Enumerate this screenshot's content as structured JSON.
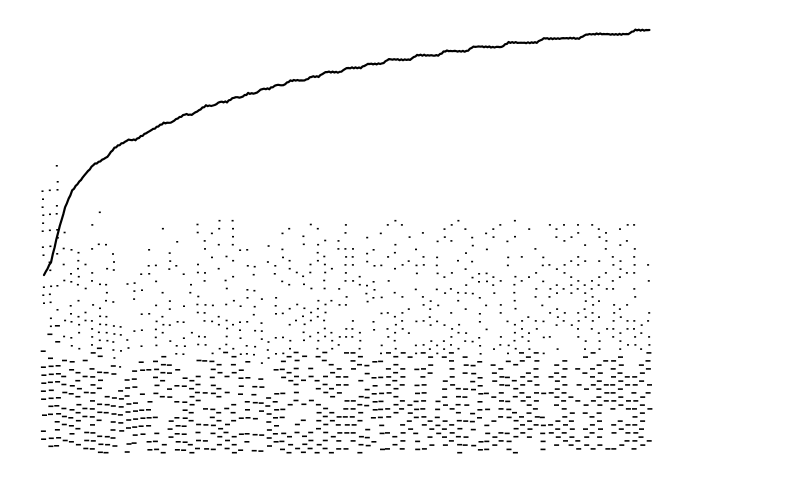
{
  "chart_data": {
    "type": "line",
    "title": "",
    "xlabel": "",
    "ylabel": "",
    "grid": false,
    "legend": "none",
    "x_range": [
      0,
      100
    ],
    "y_range": [
      0,
      100
    ],
    "line_color": "#000000",
    "dot_color": "#000000",
    "series": [
      {
        "values": [
          [
            0,
            42
          ],
          [
            1,
            45
          ],
          [
            2,
            52
          ],
          [
            3,
            58
          ],
          [
            4,
            62
          ],
          [
            5,
            64
          ],
          [
            6,
            66
          ],
          [
            7,
            68
          ],
          [
            8,
            69
          ],
          [
            9,
            70
          ],
          [
            10,
            72
          ],
          [
            11,
            73
          ],
          [
            12,
            74
          ],
          [
            13,
            74
          ],
          [
            14,
            75
          ],
          [
            15,
            76
          ],
          [
            16,
            77
          ],
          [
            17,
            78
          ],
          [
            18,
            78
          ],
          [
            19,
            79
          ],
          [
            20,
            80
          ],
          [
            21,
            80
          ],
          [
            22,
            81
          ],
          [
            23,
            82
          ],
          [
            24,
            82
          ],
          [
            25,
            83
          ],
          [
            26,
            83
          ],
          [
            27,
            84
          ],
          [
            28,
            84
          ],
          [
            29,
            85
          ],
          [
            30,
            85
          ],
          [
            31,
            86
          ],
          [
            32,
            86
          ],
          [
            33,
            87
          ],
          [
            34,
            87
          ],
          [
            35,
            88
          ],
          [
            36,
            88
          ],
          [
            37,
            88
          ],
          [
            38,
            89
          ],
          [
            39,
            89
          ],
          [
            40,
            90
          ],
          [
            41,
            90
          ],
          [
            42,
            90
          ],
          [
            43,
            91
          ],
          [
            44,
            91
          ],
          [
            45,
            91
          ],
          [
            46,
            92
          ],
          [
            47,
            92
          ],
          [
            48,
            92
          ],
          [
            49,
            93
          ],
          [
            50,
            93
          ],
          [
            51,
            93
          ],
          [
            52,
            93
          ],
          [
            53,
            94
          ],
          [
            54,
            94
          ],
          [
            55,
            94
          ],
          [
            56,
            94
          ],
          [
            57,
            95
          ],
          [
            58,
            95
          ],
          [
            59,
            95
          ],
          [
            60,
            95
          ],
          [
            61,
            96
          ],
          [
            62,
            96
          ],
          [
            63,
            96
          ],
          [
            64,
            96
          ],
          [
            65,
            96
          ],
          [
            66,
            97
          ],
          [
            67,
            97
          ],
          [
            68,
            97
          ],
          [
            69,
            97
          ],
          [
            70,
            97
          ],
          [
            71,
            98
          ],
          [
            72,
            98
          ],
          [
            73,
            98
          ],
          [
            74,
            98
          ],
          [
            75,
            98
          ],
          [
            76,
            98
          ],
          [
            77,
            99
          ],
          [
            78,
            99
          ],
          [
            79,
            99
          ],
          [
            80,
            99
          ],
          [
            81,
            99
          ],
          [
            82,
            99
          ],
          [
            83,
            99
          ],
          [
            84,
            100
          ],
          [
            85,
            100
          ],
          [
            86,
            100
          ]
        ]
      }
    ],
    "dot_columns": [
      {
        "x": 0,
        "top": 62
      },
      {
        "x": 1,
        "top": 66
      },
      {
        "x": 2,
        "top": 68
      },
      {
        "x": 3,
        "top": 56
      },
      {
        "x": 4,
        "top": 50
      },
      {
        "x": 5,
        "top": 55
      },
      {
        "x": 6,
        "top": 56
      },
      {
        "x": 7,
        "top": 54
      },
      {
        "x": 8,
        "top": 57
      },
      {
        "x": 9,
        "top": 55
      },
      {
        "x": 10,
        "top": 49
      },
      {
        "x": 11,
        "top": 45
      },
      {
        "x": 12,
        "top": 40
      },
      {
        "x": 13,
        "top": 44
      },
      {
        "x": 14,
        "top": 48
      },
      {
        "x": 15,
        "top": 50
      },
      {
        "x": 16,
        "top": 52
      },
      {
        "x": 17,
        "top": 55
      },
      {
        "x": 18,
        "top": 53
      },
      {
        "x": 19,
        "top": 50
      },
      {
        "x": 20,
        "top": 48
      },
      {
        "x": 21,
        "top": 55
      },
      {
        "x": 22,
        "top": 56
      },
      {
        "x": 23,
        "top": 54
      },
      {
        "x": 24,
        "top": 52
      },
      {
        "x": 25,
        "top": 55
      },
      {
        "x": 26,
        "top": 56
      },
      {
        "x": 27,
        "top": 55
      },
      {
        "x": 28,
        "top": 48
      },
      {
        "x": 29,
        "top": 50
      },
      {
        "x": 30,
        "top": 46
      },
      {
        "x": 31,
        "top": 44
      },
      {
        "x": 32,
        "top": 49
      },
      {
        "x": 33,
        "top": 50
      },
      {
        "x": 34,
        "top": 52
      },
      {
        "x": 35,
        "top": 55
      },
      {
        "x": 36,
        "top": 56
      },
      {
        "x": 37,
        "top": 57
      },
      {
        "x": 38,
        "top": 56
      },
      {
        "x": 39,
        "top": 55
      },
      {
        "x": 40,
        "top": 56
      },
      {
        "x": 41,
        "top": 55
      },
      {
        "x": 42,
        "top": 54
      },
      {
        "x": 43,
        "top": 54
      },
      {
        "x": 44,
        "top": 54
      },
      {
        "x": 45,
        "top": 55
      },
      {
        "x": 46,
        "top": 51
      },
      {
        "x": 47,
        "top": 50
      },
      {
        "x": 48,
        "top": 52
      },
      {
        "x": 49,
        "top": 54
      },
      {
        "x": 50,
        "top": 55
      },
      {
        "x": 51,
        "top": 54
      },
      {
        "x": 52,
        "top": 53
      },
      {
        "x": 53,
        "top": 52
      },
      {
        "x": 54,
        "top": 54
      },
      {
        "x": 55,
        "top": 53
      },
      {
        "x": 56,
        "top": 52
      },
      {
        "x": 57,
        "top": 53
      },
      {
        "x": 58,
        "top": 54
      },
      {
        "x": 59,
        "top": 55
      },
      {
        "x": 60,
        "top": 53
      },
      {
        "x": 61,
        "top": 51
      },
      {
        "x": 62,
        "top": 50
      },
      {
        "x": 63,
        "top": 52
      },
      {
        "x": 64,
        "top": 53
      },
      {
        "x": 65,
        "top": 54
      },
      {
        "x": 66,
        "top": 52
      },
      {
        "x": 67,
        "top": 55
      },
      {
        "x": 68,
        "top": 54
      },
      {
        "x": 69,
        "top": 53
      },
      {
        "x": 70,
        "top": 54
      },
      {
        "x": 71,
        "top": 52
      },
      {
        "x": 72,
        "top": 54
      },
      {
        "x": 73,
        "top": 53
      },
      {
        "x": 74,
        "top": 54
      },
      {
        "x": 75,
        "top": 53
      },
      {
        "x": 76,
        "top": 54
      },
      {
        "x": 77,
        "top": 53
      },
      {
        "x": 78,
        "top": 54
      },
      {
        "x": 79,
        "top": 53
      },
      {
        "x": 80,
        "top": 54
      },
      {
        "x": 81,
        "top": 54
      },
      {
        "x": 82,
        "top": 53
      },
      {
        "x": 83,
        "top": 54
      },
      {
        "x": 84,
        "top": 54
      },
      {
        "x": 85,
        "top": 53
      },
      {
        "x": 86,
        "top": 54
      }
    ]
  }
}
